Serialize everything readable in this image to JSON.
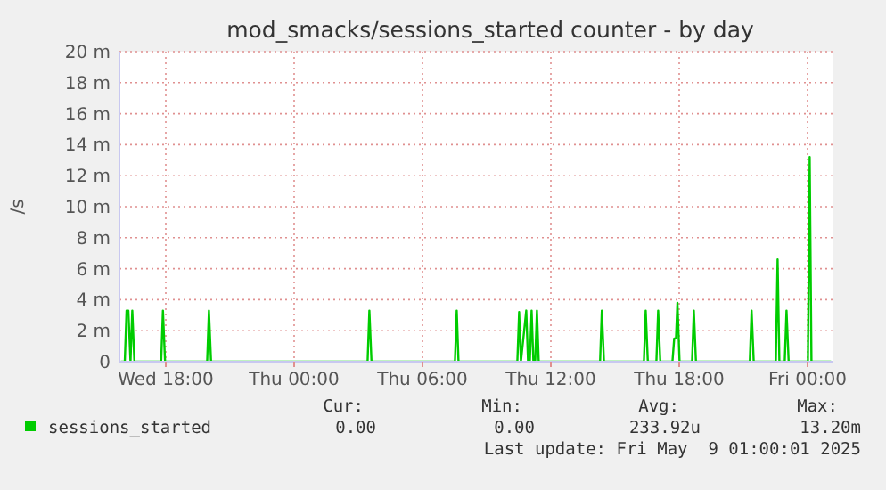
{
  "chart_data": {
    "type": "line",
    "title": "mod_smacks/sessions_started counter - by day",
    "ylabel": "/s",
    "xlim": [
      "2025-05-07T15:50",
      "2025-05-09T01:10"
    ],
    "xticks": [
      {
        "value": "2025-05-07T18:00",
        "label": "Wed 18:00"
      },
      {
        "value": "2025-05-08T00:00",
        "label": "Thu 00:00"
      },
      {
        "value": "2025-05-08T06:00",
        "label": "Thu 06:00"
      },
      {
        "value": "2025-05-08T12:00",
        "label": "Thu 12:00"
      },
      {
        "value": "2025-05-08T18:00",
        "label": "Thu 18:00"
      },
      {
        "value": "2025-05-09T00:00",
        "label": "Fri 00:00"
      }
    ],
    "ylim": [
      0,
      20
    ],
    "yticks": [
      {
        "value": 0,
        "label": "0"
      },
      {
        "value": 2,
        "label": "2 m"
      },
      {
        "value": 4,
        "label": "4 m"
      },
      {
        "value": 6,
        "label": "6 m"
      },
      {
        "value": 8,
        "label": "8 m"
      },
      {
        "value": 10,
        "label": "10 m"
      },
      {
        "value": 12,
        "label": "12 m"
      },
      {
        "value": 14,
        "label": "14 m"
      },
      {
        "value": 16,
        "label": "16 m"
      },
      {
        "value": 18,
        "label": "18 m"
      },
      {
        "value": 20,
        "label": "20 m"
      }
    ],
    "grid": true,
    "legend": "bottom",
    "marker": "none",
    "line_style": "solid",
    "series": [
      {
        "name": "sessions_started",
        "color": "#00cc00",
        "x": [
          "2025-05-07T15:54",
          "2025-05-07T16:05",
          "2025-05-07T16:10",
          "2025-05-07T16:15",
          "2025-05-07T16:21",
          "2025-05-07T16:26",
          "2025-05-07T16:32",
          "2025-05-07T17:47",
          "2025-05-07T17:52",
          "2025-05-07T17:58",
          "2025-05-07T19:56",
          "2025-05-07T20:01",
          "2025-05-07T20:07",
          "2025-05-08T03:26",
          "2025-05-08T03:31",
          "2025-05-08T03:37",
          "2025-05-08T07:31",
          "2025-05-08T07:36",
          "2025-05-08T07:41",
          "2025-05-08T10:26",
          "2025-05-08T10:31",
          "2025-05-08T10:36",
          "2025-05-08T10:51",
          "2025-05-08T10:56",
          "2025-05-08T11:01",
          "2025-05-08T11:06",
          "2025-05-08T11:11",
          "2025-05-08T11:16",
          "2025-05-08T11:21",
          "2025-05-08T11:26",
          "2025-05-08T14:18",
          "2025-05-08T14:23",
          "2025-05-08T14:29",
          "2025-05-08T16:21",
          "2025-05-08T16:26",
          "2025-05-08T16:32",
          "2025-05-08T16:56",
          "2025-05-08T17:01",
          "2025-05-08T17:07",
          "2025-05-08T17:41",
          "2025-05-08T17:46",
          "2025-05-08T17:51",
          "2025-05-08T17:55",
          "2025-05-08T18:01",
          "2025-05-08T18:36",
          "2025-05-08T18:41",
          "2025-05-08T18:47",
          "2025-05-08T21:18",
          "2025-05-08T21:23",
          "2025-05-08T21:29",
          "2025-05-08T22:31",
          "2025-05-08T22:36",
          "2025-05-08T22:41",
          "2025-05-08T22:56",
          "2025-05-08T23:01",
          "2025-05-08T23:07",
          "2025-05-09T00:01",
          "2025-05-09T00:06",
          "2025-05-09T00:11",
          "2025-05-09T01:06"
        ],
        "values": [
          0,
          0,
          3.3,
          3.3,
          0,
          3.3,
          0,
          0,
          3.3,
          0,
          0,
          3.3,
          0,
          0,
          3.3,
          0,
          0,
          3.3,
          0,
          0,
          3.2,
          0,
          3.3,
          0,
          0,
          3.3,
          0,
          0,
          3.3,
          0,
          0,
          3.3,
          0,
          0,
          3.3,
          0,
          0,
          3.3,
          0,
          0,
          1.5,
          1.5,
          3.8,
          0,
          0,
          3.3,
          0,
          0,
          3.3,
          0,
          0,
          6.6,
          0,
          0,
          3.3,
          0,
          0,
          13.2,
          0,
          0
        ]
      }
    ],
    "annotations": [
      "Cur:",
      "Min:",
      "Avg:",
      "Max:",
      "0.00",
      "0.00",
      "233.92u",
      "13.20m",
      "Last update: Fri May  9 01:00:01 2025"
    ]
  }
}
